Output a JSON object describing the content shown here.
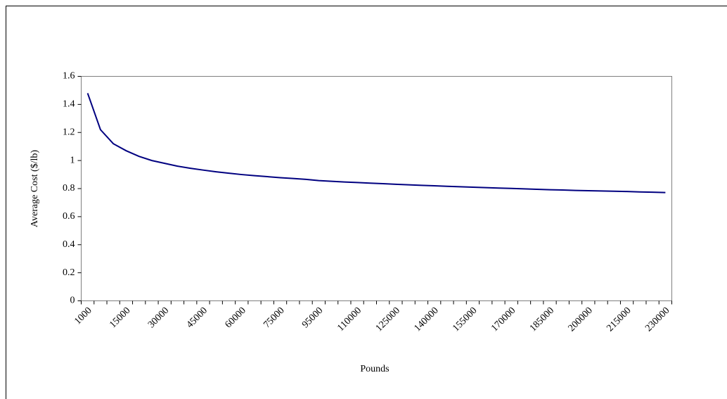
{
  "chart_data": {
    "type": "line",
    "y_label": "Average Cost ($/lb)",
    "x_label": "Pounds",
    "categories": [
      "1000",
      null,
      null,
      "15000",
      null,
      null,
      "30000",
      null,
      null,
      "45000",
      null,
      null,
      "60000",
      null,
      null,
      "75000",
      null,
      null,
      "95000",
      null,
      null,
      "110000",
      null,
      null,
      "125000",
      null,
      null,
      "140000",
      null,
      null,
      "155000",
      null,
      null,
      "170000",
      null,
      null,
      "185000",
      null,
      null,
      "200000",
      null,
      null,
      "215000",
      null,
      null,
      "230000"
    ],
    "series": [
      {
        "name": "Average Cost",
        "color": "#000080",
        "values": [
          1.48,
          1.22,
          1.12,
          1.07,
          1.03,
          1.0,
          0.98,
          0.96,
          0.945,
          0.932,
          0.92,
          0.91,
          0.9,
          0.892,
          0.885,
          0.878,
          0.872,
          0.866,
          0.857,
          0.852,
          0.847,
          0.843,
          0.839,
          0.835,
          0.831,
          0.827,
          0.823,
          0.82,
          0.816,
          0.813,
          0.81,
          0.807,
          0.804,
          0.801,
          0.798,
          0.795,
          0.792,
          0.79,
          0.787,
          0.785,
          0.783,
          0.781,
          0.779,
          0.776,
          0.774,
          0.772
        ]
      }
    ],
    "ylim": [
      0,
      1.6
    ],
    "yticks": [
      0,
      0.2,
      0.4,
      0.6,
      0.8,
      1,
      1.2,
      1.4,
      1.6
    ]
  }
}
